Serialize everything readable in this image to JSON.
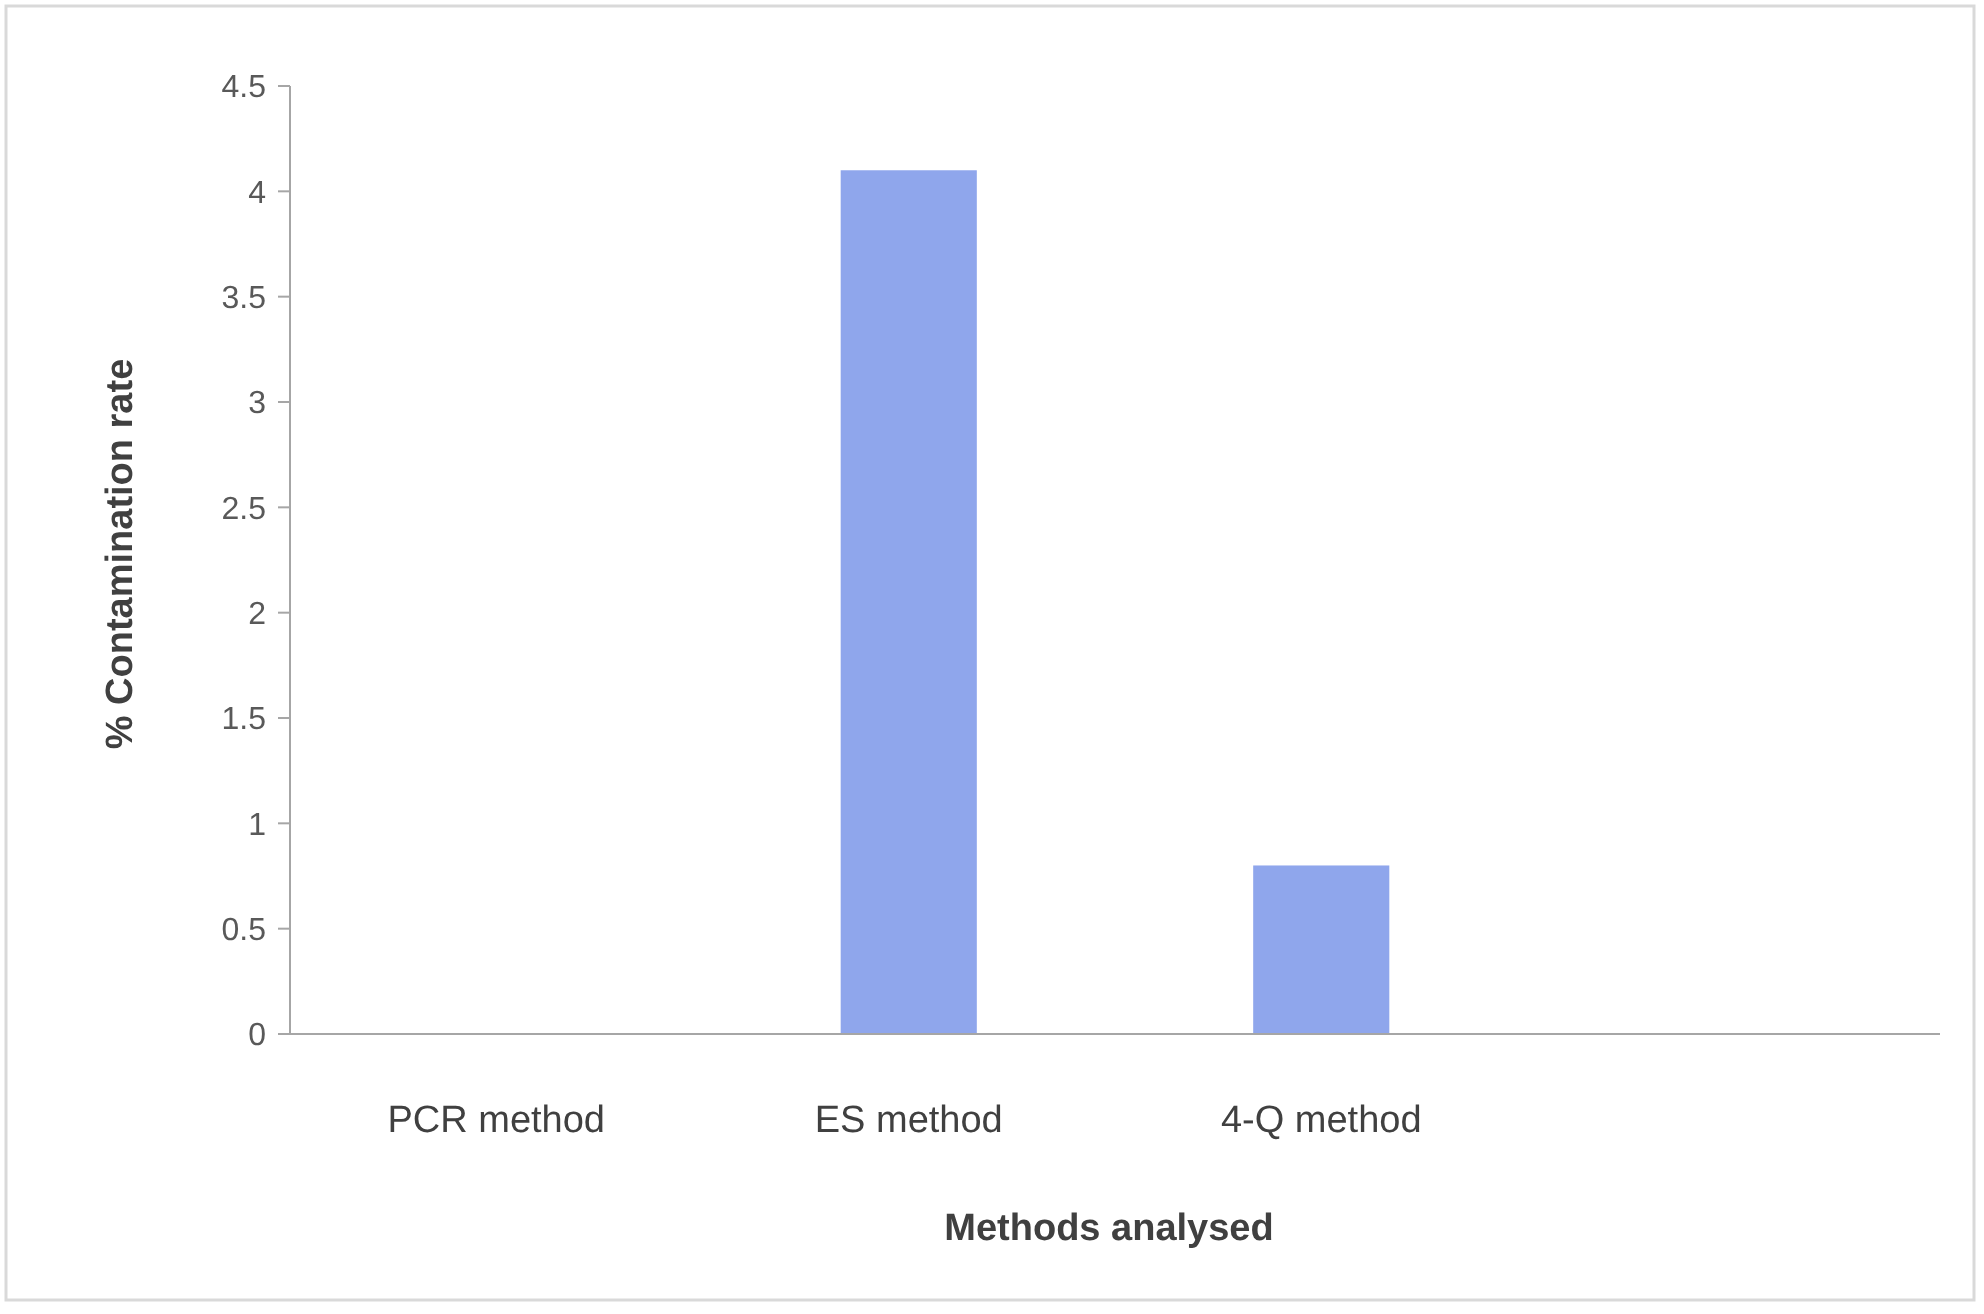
{
  "chart_data": {
    "type": "bar",
    "xlabel": "Methods analysed",
    "ylabel": "% Contamination rate",
    "categories": [
      "PCR method",
      "ES method",
      "4-Q method",
      null
    ],
    "values": [
      0,
      4.1,
      0.8,
      null
    ],
    "color": "#8fa6ec",
    "ylim": [
      0,
      4.5
    ],
    "yticks": [
      0,
      0.5,
      1,
      1.5,
      2,
      2.5,
      3,
      3.5,
      4,
      4.5
    ],
    "grid": false
  }
}
